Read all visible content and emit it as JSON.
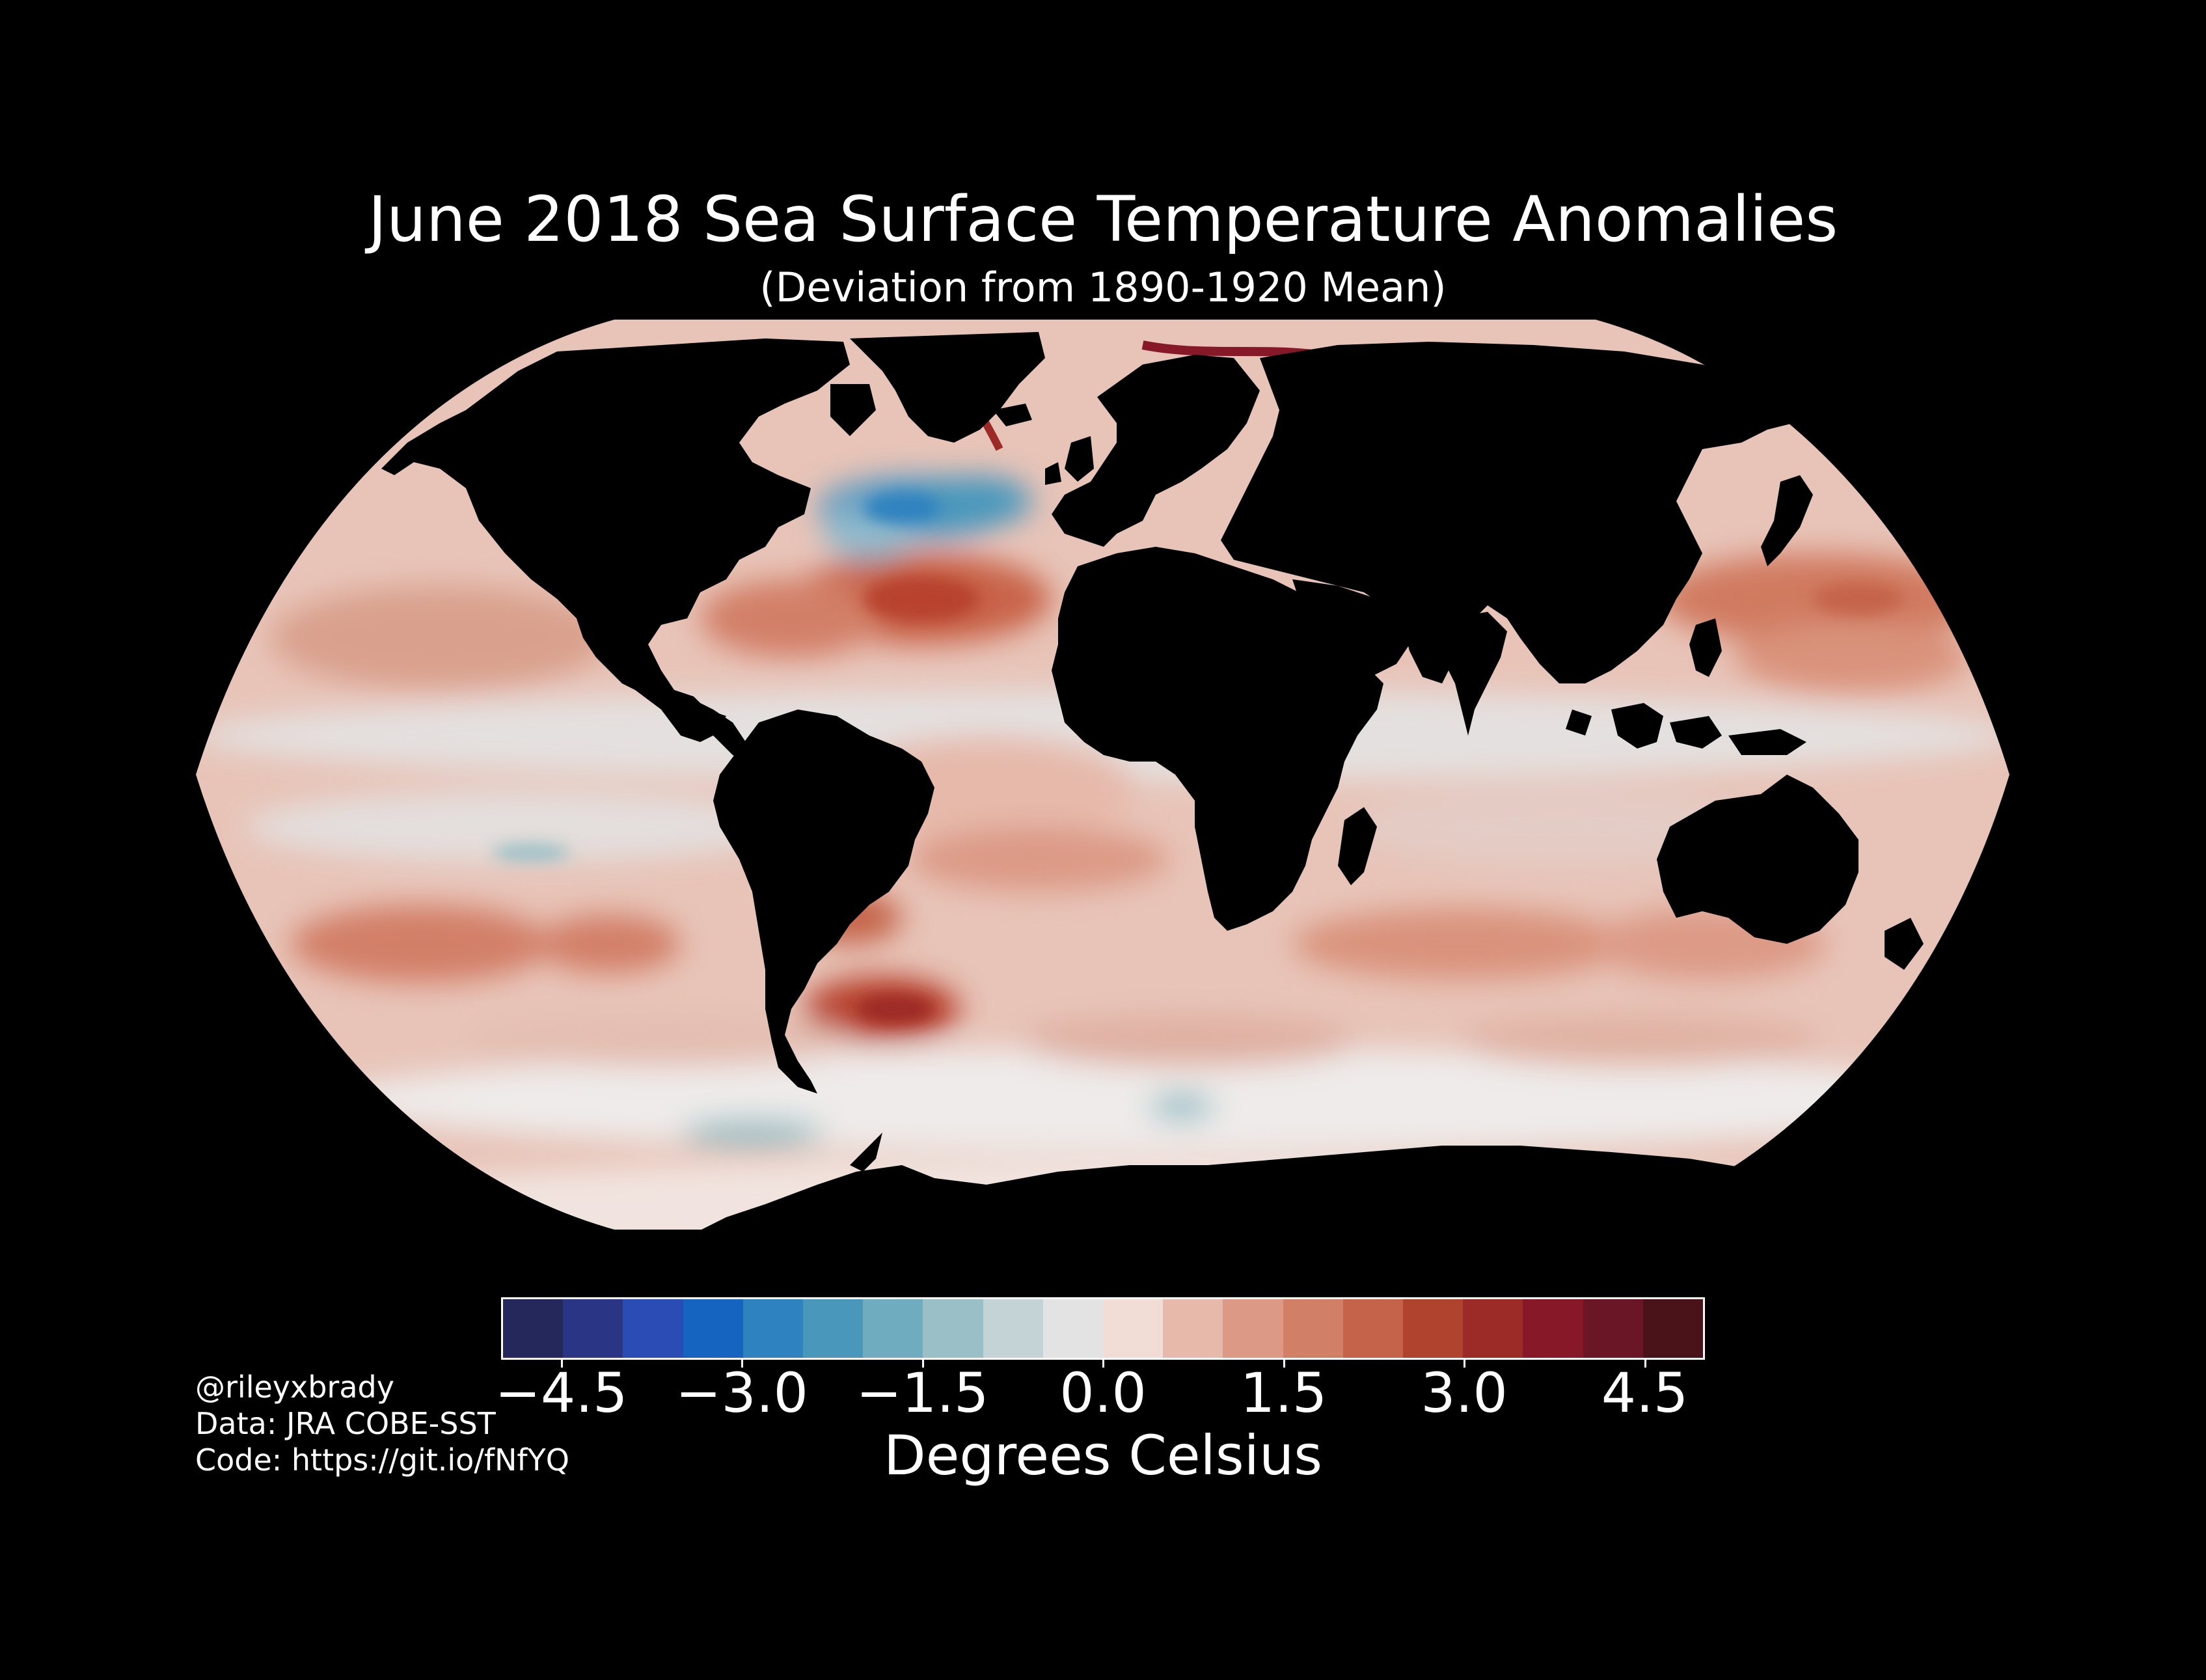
{
  "title": "June 2018 Sea Surface Temperature Anomalies",
  "subtitle": "(Deviation from 1890-1920 Mean)",
  "map": {
    "projection": "Robinson",
    "ocean_base_color": "#e8c4b8",
    "land_color": "#000000",
    "background_color": "#000000",
    "regions": [
      {
        "name": "North Atlantic cold anomaly",
        "color": "#5a9bc2"
      },
      {
        "name": "North Atlantic warm anomaly",
        "color": "#c8644a"
      },
      {
        "name": "South Atlantic warm anomaly",
        "color": "#b8432f"
      },
      {
        "name": "North Pacific warm anomaly",
        "color": "#d07a60"
      },
      {
        "name": "Arctic coastal warm anomaly",
        "color": "#8a1a2a"
      },
      {
        "name": "Equatorial Pacific neutral band",
        "color": "#e3e3e3"
      }
    ]
  },
  "colorbar": {
    "colors": [
      "#24285a",
      "#2a3585",
      "#2a4cb4",
      "#1565c0",
      "#2e82bf",
      "#4a97bc",
      "#70acc0",
      "#9bbfc6",
      "#c3d3d6",
      "#e3e3e3",
      "#f1dcd6",
      "#e6b9aa",
      "#dc9a86",
      "#d27f68",
      "#c4634a",
      "#b0432e",
      "#9c2a27",
      "#861828",
      "#6b1626",
      "#4a1219"
    ],
    "ticks": [
      "−4.5",
      "−3.0",
      "−1.5",
      "0.0",
      "1.5",
      "3.0",
      "4.5"
    ],
    "tick_values": [
      -4.5,
      -3.0,
      -1.5,
      0.0,
      1.5,
      3.0,
      4.5
    ],
    "min": -5.0,
    "max": 5.0,
    "label": "Degrees Celsius"
  },
  "credits": {
    "handle": "@rileyxbrady",
    "data": "Data: JRA COBE-SST",
    "code": "Code: https://git.io/fNfYQ"
  }
}
